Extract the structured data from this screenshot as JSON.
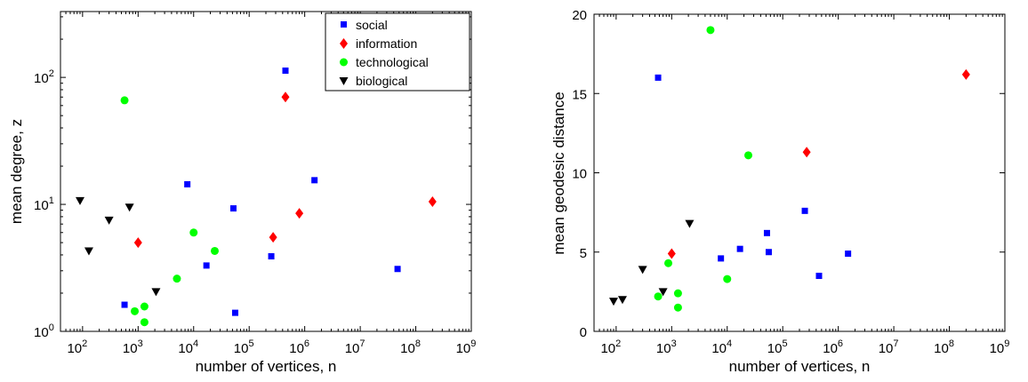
{
  "legend": [
    {
      "label": "social",
      "color": "#0000ff",
      "marker": "square"
    },
    {
      "label": "information",
      "color": "#ff0000",
      "marker": "diamond"
    },
    {
      "label": "technological",
      "color": "#00ff00",
      "marker": "circle"
    },
    {
      "label": "biological",
      "color": "#000000",
      "marker": "triangle-down"
    }
  ],
  "chart_data": [
    {
      "type": "scatter",
      "xlabel": "number of vertices, n",
      "ylabel": "mean degree, z",
      "xscale": "log",
      "yscale": "log",
      "xlim": [
        40,
        1000000000
      ],
      "ylim": [
        1,
        330
      ],
      "xticks": [
        {
          "base": "10",
          "exp": "2"
        },
        {
          "base": "10",
          "exp": "3"
        },
        {
          "base": "10",
          "exp": "4"
        },
        {
          "base": "10",
          "exp": "5"
        },
        {
          "base": "10",
          "exp": "6"
        },
        {
          "base": "10",
          "exp": "7"
        },
        {
          "base": "10",
          "exp": "8"
        },
        {
          "base": "10",
          "exp": "9"
        }
      ],
      "yticks": [
        {
          "base": "10",
          "exp": "0"
        },
        {
          "base": "10",
          "exp": "1"
        },
        {
          "base": "10",
          "exp": "2"
        }
      ],
      "legend_position": "top-right",
      "series": [
        {
          "name": "social",
          "points": [
            [
              450000,
              113
            ],
            [
              7700,
              14.4
            ],
            [
              1500000,
              15.5
            ],
            [
              52000,
              9.3
            ],
            [
              250000,
              3.9
            ],
            [
              17000,
              3.3
            ],
            [
              47000000,
              3.1
            ],
            [
              570,
              1.62
            ],
            [
              56000,
              1.4
            ]
          ]
        },
        {
          "name": "information",
          "points": [
            [
              450000,
              70
            ],
            [
              200000000,
              10.5
            ],
            [
              800000,
              8.5
            ],
            [
              270000,
              5.5
            ],
            [
              1000,
              5.0
            ]
          ]
        },
        {
          "name": "technological",
          "points": [
            [
              570,
              66
            ],
            [
              10000,
              6.0
            ],
            [
              24000,
              4.3
            ],
            [
              5000,
              2.6
            ],
            [
              1300,
              1.57
            ],
            [
              870,
              1.44
            ],
            [
              1300,
              1.18
            ]
          ]
        },
        {
          "name": "biological",
          "points": [
            [
              90,
              10.7
            ],
            [
              300,
              7.5
            ],
            [
              700,
              9.5
            ],
            [
              130,
              4.3
            ],
            [
              2100,
              2.05
            ]
          ]
        }
      ]
    },
    {
      "type": "scatter",
      "xlabel": "number of vertices, n",
      "ylabel": "mean geodesic distance",
      "xscale": "log",
      "yscale": "linear",
      "xlim": [
        40,
        1000000000
      ],
      "ylim": [
        0,
        20
      ],
      "xticks": [
        {
          "base": "10",
          "exp": "2"
        },
        {
          "base": "10",
          "exp": "3"
        },
        {
          "base": "10",
          "exp": "4"
        },
        {
          "base": "10",
          "exp": "5"
        },
        {
          "base": "10",
          "exp": "6"
        },
        {
          "base": "10",
          "exp": "7"
        },
        {
          "base": "10",
          "exp": "8"
        },
        {
          "base": "10",
          "exp": "9"
        }
      ],
      "yticks": [
        "0",
        "5",
        "10",
        "15",
        "20"
      ],
      "series": [
        {
          "name": "social",
          "points": [
            [
              570,
              16.0
            ],
            [
              7700,
              4.6
            ],
            [
              17000,
              5.2
            ],
            [
              52000,
              6.2
            ],
            [
              56000,
              5.0
            ],
            [
              250000,
              7.6
            ],
            [
              450000,
              3.5
            ],
            [
              1500000,
              4.9
            ]
          ]
        },
        {
          "name": "information",
          "points": [
            [
              1000,
              4.9
            ],
            [
              270000,
              11.3
            ],
            [
              200000000,
              16.2
            ]
          ]
        },
        {
          "name": "technological",
          "points": [
            [
              570,
              2.2
            ],
            [
              870,
              4.3
            ],
            [
              1300,
              1.5
            ],
            [
              1300,
              2.4
            ],
            [
              5000,
              19.0
            ],
            [
              10000,
              3.3
            ],
            [
              24000,
              11.1
            ]
          ]
        },
        {
          "name": "biological",
          "points": [
            [
              90,
              1.9
            ],
            [
              130,
              2.0
            ],
            [
              300,
              3.9
            ],
            [
              700,
              2.5
            ],
            [
              2100,
              6.8
            ]
          ]
        }
      ]
    }
  ]
}
